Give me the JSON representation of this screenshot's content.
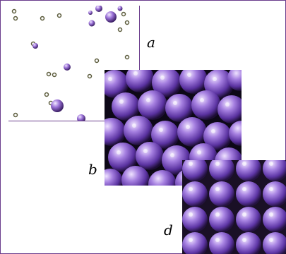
{
  "labels": {
    "a": "a",
    "b": "b",
    "d": "d"
  },
  "colors": {
    "frame": "#6a3d8c",
    "sphere_light": "#c9a9f0",
    "sphere_mid": "#7d4fc4",
    "sphere_dark": "#2b1548"
  }
}
